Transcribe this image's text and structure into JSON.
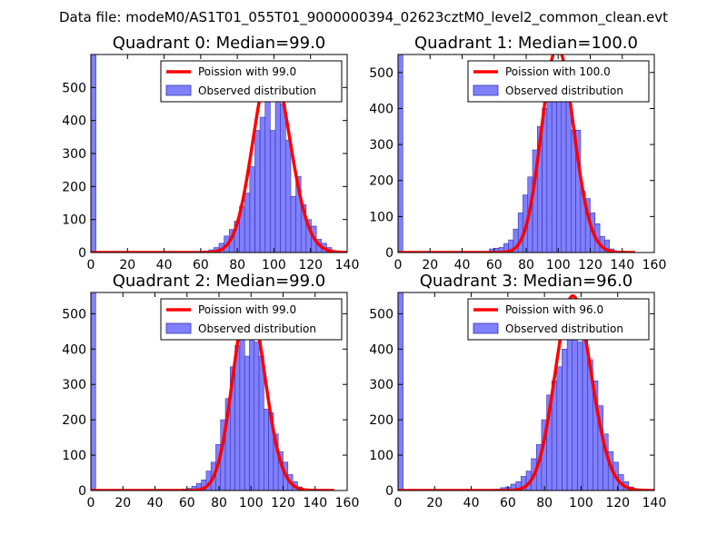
{
  "figure": {
    "suptitle": "Data file: modeM0/AS1T01_055T01_9000000394_02623cztM0_level2_common_clean.evt"
  },
  "colors": {
    "bar_fill": "#8080ff",
    "bar_edge": "#3333aa",
    "curve": "#ff0000",
    "axes": "#000000",
    "legend_border": "#000000"
  },
  "legend": {
    "observed": "Observed distribution"
  },
  "chart_data": [
    {
      "type": "bar",
      "title": "Quadrant 0: Median=99.0",
      "median": 99.0,
      "xlim": [
        0,
        140
      ],
      "ylim": [
        0,
        600
      ],
      "xticks": [
        0,
        20,
        40,
        60,
        80,
        100,
        120,
        140
      ],
      "yticks": [
        0,
        100,
        200,
        300,
        400,
        500
      ],
      "bin_width": 2.8,
      "bins": [
        0,
        2.8,
        56,
        58.8,
        61.6,
        64.4,
        67.2,
        70,
        72.8,
        75.6,
        78.4,
        81.2,
        84,
        86.8,
        89.6,
        92.4,
        95.2,
        98,
        100.8,
        103.6,
        106.4,
        109.2,
        112,
        114.8,
        117.6,
        120.4,
        123.2,
        126,
        128.8,
        131.6
      ],
      "counts": [
        600,
        2,
        2,
        3,
        5,
        8,
        15,
        28,
        50,
        70,
        95,
        140,
        180,
        260,
        370,
        410,
        480,
        370,
        530,
        450,
        340,
        170,
        230,
        145,
        100,
        80,
        40,
        28,
        15,
        5
      ],
      "legend_curve": "Poission with 99.0",
      "poisson_lambda": 99.0,
      "poisson_peak": 570,
      "curve_xmax": 140
    },
    {
      "type": "bar",
      "title": "Quadrant 1: Median=100.0",
      "median": 100.0,
      "xlim": [
        0,
        160
      ],
      "ylim": [
        0,
        550
      ],
      "xticks": [
        0,
        20,
        40,
        60,
        80,
        100,
        120,
        140,
        160
      ],
      "yticks": [
        0,
        100,
        200,
        300,
        400,
        500
      ],
      "bin_width": 3,
      "bins": [
        0,
        3,
        51,
        54,
        57,
        60,
        63,
        66,
        69,
        72,
        75,
        78,
        81,
        84,
        87,
        90,
        93,
        96,
        99,
        102,
        105,
        108,
        111,
        114,
        117,
        120,
        123,
        126,
        129,
        132,
        135,
        138,
        141
      ],
      "counts": [
        550,
        2,
        3,
        2,
        10,
        12,
        14,
        25,
        35,
        65,
        110,
        160,
        210,
        285,
        350,
        400,
        430,
        460,
        500,
        470,
        450,
        340,
        340,
        170,
        150,
        110,
        80,
        45,
        35,
        10,
        4,
        2,
        1
      ],
      "legend_curve": "Poission with 100.0",
      "poisson_lambda": 100.0,
      "poisson_peak": 570,
      "curve_xmax": 148
    },
    {
      "type": "bar",
      "title": "Quadrant 2: Median=99.0",
      "median": 99.0,
      "xlim": [
        0,
        160
      ],
      "ylim": [
        0,
        560
      ],
      "xticks": [
        0,
        20,
        40,
        60,
        80,
        100,
        120,
        140,
        160
      ],
      "yticks": [
        0,
        100,
        200,
        300,
        400,
        500
      ],
      "bin_width": 3,
      "bins": [
        0,
        3,
        57,
        60,
        63,
        66,
        69,
        72,
        75,
        78,
        81,
        84,
        87,
        90,
        93,
        96,
        99,
        102,
        105,
        108,
        111,
        114,
        117,
        120,
        123,
        126,
        129,
        132,
        135
      ],
      "counts": [
        560,
        2,
        4,
        6,
        12,
        20,
        30,
        55,
        80,
        130,
        200,
        260,
        350,
        410,
        510,
        380,
        470,
        420,
        380,
        230,
        220,
        160,
        110,
        80,
        45,
        25,
        10,
        5,
        2
      ],
      "legend_curve": "Poission with 99.0",
      "poisson_lambda": 99.0,
      "poisson_peak": 535,
      "curve_xmax": 152
    },
    {
      "type": "bar",
      "title": "Quadrant 3: Median=96.0",
      "median": 96.0,
      "xlim": [
        0,
        140
      ],
      "ylim": [
        0,
        560
      ],
      "xticks": [
        0,
        20,
        40,
        60,
        80,
        100,
        120,
        140
      ],
      "yticks": [
        0,
        100,
        200,
        300,
        400,
        500
      ],
      "bin_width": 2.8,
      "bins": [
        0,
        2.8,
        53.2,
        56,
        58.8,
        61.6,
        64.4,
        67.2,
        70,
        72.8,
        75.6,
        78.4,
        81.2,
        84,
        86.8,
        89.6,
        92.4,
        95.2,
        98,
        100.8,
        103.6,
        106.4,
        109.2,
        112,
        114.8,
        117.6,
        120.4,
        123.2,
        126
      ],
      "counts": [
        560,
        2,
        4,
        8,
        10,
        18,
        25,
        40,
        55,
        90,
        130,
        200,
        270,
        310,
        350,
        400,
        460,
        510,
        420,
        540,
        370,
        310,
        240,
        160,
        110,
        80,
        45,
        25,
        10
      ],
      "legend_curve": "Poission with 96.0",
      "poisson_lambda": 96.0,
      "poisson_peak": 550,
      "curve_xmax": 140
    }
  ]
}
